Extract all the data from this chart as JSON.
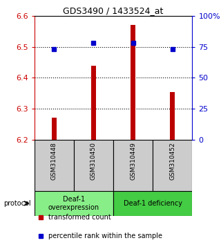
{
  "title": "GDS3490 / 1433524_at",
  "samples": [
    "GSM310448",
    "GSM310450",
    "GSM310449",
    "GSM310452"
  ],
  "red_values": [
    6.27,
    6.44,
    6.57,
    6.355
  ],
  "blue_values": [
    73,
    78,
    78,
    73
  ],
  "ylim_left": [
    6.2,
    6.6
  ],
  "ylim_right": [
    0,
    100
  ],
  "yticks_left": [
    6.2,
    6.3,
    6.4,
    6.5,
    6.6
  ],
  "yticks_right": [
    0,
    25,
    50,
    75,
    100
  ],
  "ytick_labels_right": [
    "0",
    "25",
    "50",
    "75",
    "100%"
  ],
  "bar_bottom": 6.2,
  "bar_color": "#bb0000",
  "bar_width": 0.12,
  "dot_color": "#0000cc",
  "dot_size": 5,
  "groups": [
    {
      "label": "Deaf-1\noverexpression",
      "samples": [
        0,
        1
      ],
      "color": "#88ee88"
    },
    {
      "label": "Deaf-1 deficiency",
      "samples": [
        2,
        3
      ],
      "color": "#44cc44"
    }
  ],
  "protocol_label": "protocol",
  "legend_items": [
    {
      "color": "#bb0000",
      "label": "transformed count"
    },
    {
      "color": "#0000cc",
      "label": "percentile rank within the sample"
    }
  ],
  "background_color": "#ffffff",
  "sample_box_color": "#cccccc",
  "title_fontsize": 9,
  "tick_fontsize": 8,
  "label_fontsize": 7,
  "legend_fontsize": 7
}
